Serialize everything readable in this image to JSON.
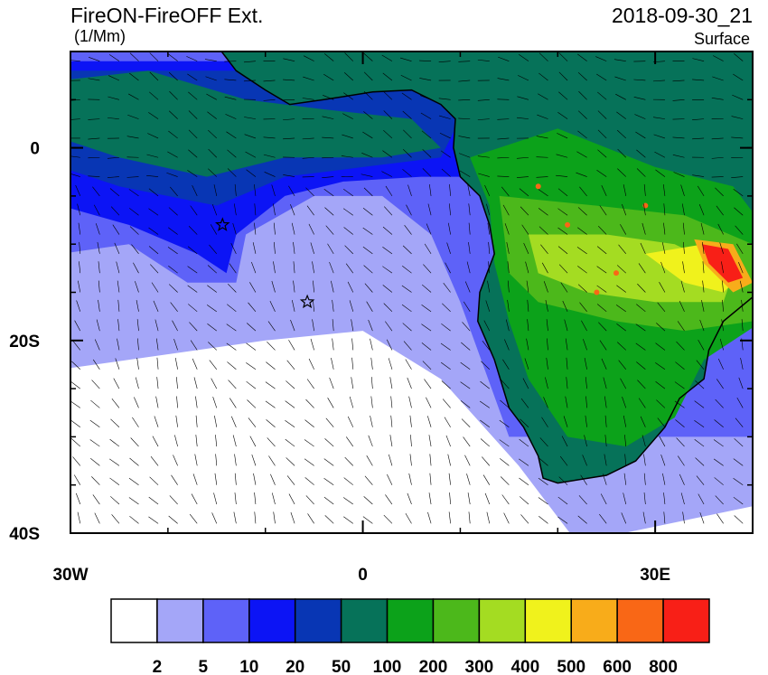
{
  "map": {
    "title": "FireON-FireOFF Ext.",
    "units": "(1/Mm)",
    "date": "2018-09-30_21",
    "level": "Surface",
    "lon_range": [
      -30,
      40
    ],
    "lat_range": [
      -40,
      10
    ],
    "lon_ticks": [
      {
        "value": -30,
        "label": "30W"
      },
      0,
      {
        "value": 30,
        "label": "30E"
      }
    ],
    "lat_ticks": [
      0,
      {
        "value": -20,
        "label": "20S"
      },
      {
        "value": -40,
        "label": "40S"
      }
    ],
    "colorbar": {
      "levels": [
        2,
        5,
        10,
        20,
        50,
        100,
        200,
        300,
        400,
        500,
        600,
        800
      ],
      "colors": [
        "#ffffff",
        "#a4a6f8",
        "#5e62f8",
        "#0c14f5",
        "#0836b4",
        "#067259",
        "#0ca21a",
        "#4cb81b",
        "#a4dc22",
        "#f0f21c",
        "#f8ac1a",
        "#f96716",
        "#f81f17"
      ]
    }
  }
}
